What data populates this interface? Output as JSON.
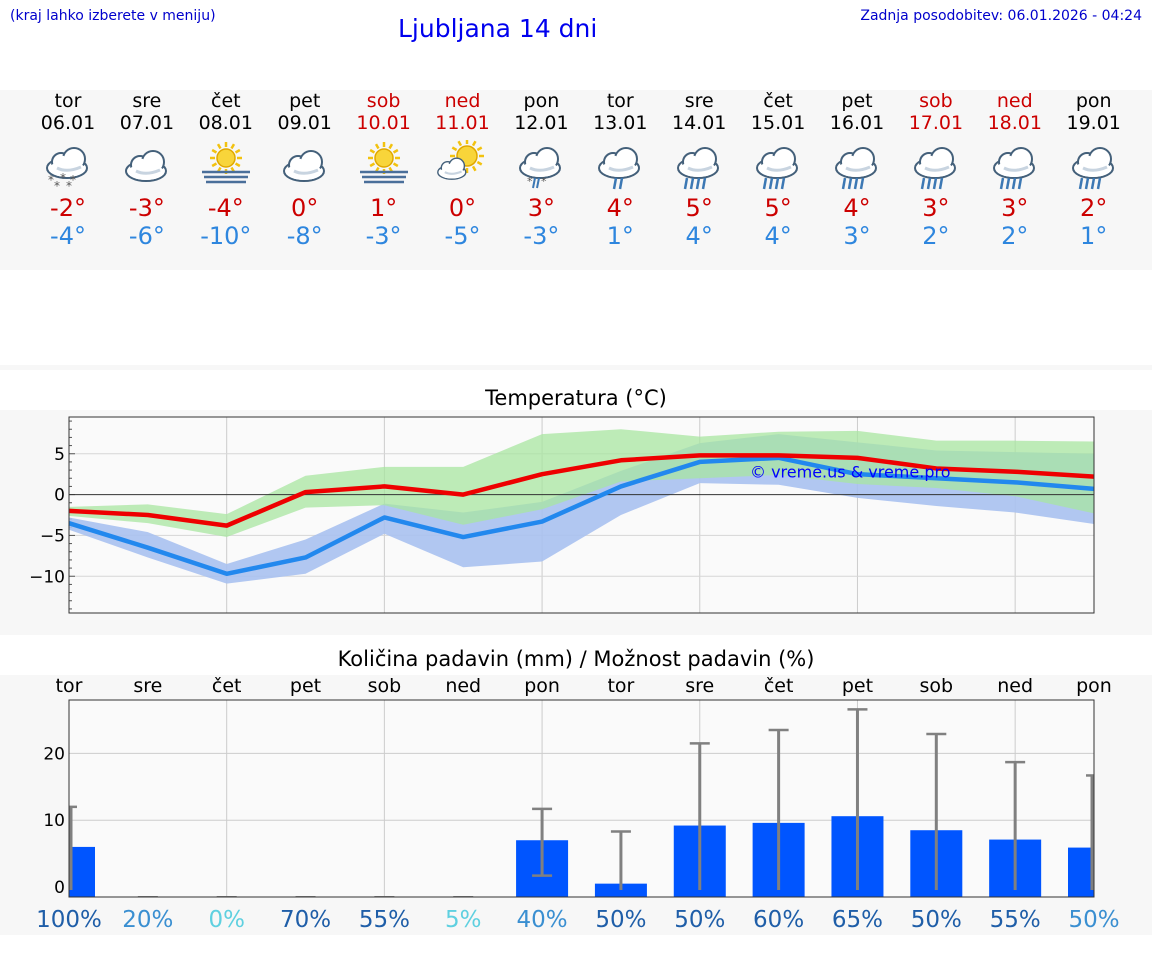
{
  "header": {
    "left_note": "(kraj lahko izberete v meniju)",
    "title": "Ljubljana 14 dni",
    "updated": "Zadnja posodobitev: 06.01.2026 - 04:24"
  },
  "colors": {
    "max": "#ee0000",
    "min": "#2288ee",
    "max_band": "#a8e6a0",
    "min_band": "#a9c1f0",
    "overlap_band": "#6fbfa0",
    "precip_bar": "#0055ff",
    "errbar": "#808080"
  },
  "days": [
    {
      "name": "tor",
      "date": "06.01",
      "weekend": false,
      "icon": "cloud-snow-icon",
      "max": "-2°",
      "min": "-4°"
    },
    {
      "name": "sre",
      "date": "07.01",
      "weekend": false,
      "icon": "cloud-icon",
      "max": "-3°",
      "min": "-6°"
    },
    {
      "name": "čet",
      "date": "08.01",
      "weekend": false,
      "icon": "sun-fog-icon",
      "max": "-4°",
      "min": "-10°"
    },
    {
      "name": "pet",
      "date": "09.01",
      "weekend": false,
      "icon": "cloud-icon",
      "max": "0°",
      "min": "-8°"
    },
    {
      "name": "sob",
      "date": "10.01",
      "weekend": true,
      "icon": "sun-fog-icon",
      "max": "1°",
      "min": "-3°"
    },
    {
      "name": "ned",
      "date": "11.01",
      "weekend": true,
      "icon": "sun-cloud-icon",
      "max": "0°",
      "min": "-5°"
    },
    {
      "name": "pon",
      "date": "12.01",
      "weekend": false,
      "icon": "cloud-sleet-icon",
      "max": "3°",
      "min": "-3°"
    },
    {
      "name": "tor",
      "date": "13.01",
      "weekend": false,
      "icon": "cloud-rain-icon",
      "max": "4°",
      "min": "1°"
    },
    {
      "name": "sre",
      "date": "14.01",
      "weekend": false,
      "icon": "cloud-heavy-rain-icon",
      "max": "5°",
      "min": "4°"
    },
    {
      "name": "čet",
      "date": "15.01",
      "weekend": false,
      "icon": "cloud-heavy-rain-icon",
      "max": "5°",
      "min": "4°"
    },
    {
      "name": "pet",
      "date": "16.01",
      "weekend": false,
      "icon": "cloud-heavy-rain-icon",
      "max": "4°",
      "min": "3°"
    },
    {
      "name": "sob",
      "date": "17.01",
      "weekend": true,
      "icon": "cloud-heavy-rain-icon",
      "max": "3°",
      "min": "2°"
    },
    {
      "name": "ned",
      "date": "18.01",
      "weekend": true,
      "icon": "cloud-heavy-rain-icon",
      "max": "3°",
      "min": "2°"
    },
    {
      "name": "pon",
      "date": "19.01",
      "weekend": false,
      "icon": "cloud-heavy-rain-icon",
      "max": "2°",
      "min": "1°"
    }
  ],
  "chart_data": [
    {
      "type": "line",
      "title": "Temperatura (°C)",
      "watermark": "© vreme.us & vreme.pro",
      "x": [
        0,
        1,
        2,
        3,
        4,
        5,
        6,
        7,
        8,
        9,
        10,
        11,
        12,
        13
      ],
      "ylim": [
        -14.5,
        9.5
      ],
      "yticks": [
        5,
        0,
        -5,
        -10
      ],
      "ytick_labels": [
        "5",
        "0",
        "−5",
        "−10"
      ],
      "series": [
        {
          "name": "max",
          "values": [
            -2,
            -2.5,
            -3.8,
            0.3,
            1,
            0,
            2.5,
            4.2,
            4.8,
            4.8,
            4.5,
            3.2,
            2.8,
            2.2
          ]
        },
        {
          "name": "min",
          "values": [
            -3.5,
            -6.5,
            -9.7,
            -7.7,
            -2.8,
            -5.2,
            -3.3,
            1,
            4,
            4.5,
            2.5,
            2,
            1.5,
            0.7
          ]
        },
        {
          "name": "max_band_upper",
          "values": [
            -1.5,
            -1.2,
            -2.4,
            2.3,
            3.4,
            3.4,
            7.4,
            8,
            7.1,
            7.7,
            7.8,
            6.6,
            6.6,
            6.5
          ]
        },
        {
          "name": "max_band_lower",
          "values": [
            -2.6,
            -3.5,
            -5.2,
            -1.6,
            -1.3,
            -3.7,
            -1.8,
            1.6,
            2,
            2.4,
            1.3,
            0.8,
            -0.2,
            -2.3
          ]
        },
        {
          "name": "min_band_upper",
          "values": [
            -2.8,
            -4.6,
            -8.5,
            -5.5,
            -1.1,
            -2.2,
            -0.9,
            2.9,
            6.3,
            7.4,
            6.4,
            5.4,
            5.2,
            5
          ]
        },
        {
          "name": "min_band_lower",
          "values": [
            -4.3,
            -7.7,
            -10.9,
            -9.7,
            -4.8,
            -8.9,
            -8.2,
            -2.5,
            1.4,
            1.2,
            -0.4,
            -1.4,
            -2.2,
            -3.6
          ]
        }
      ]
    },
    {
      "type": "bar",
      "title": "Količina padavin (mm) / Možnost padavin (%)",
      "categories": [
        "tor",
        "sre",
        "čet",
        "pet",
        "sob",
        "ned",
        "pon",
        "tor",
        "sre",
        "čet",
        "pet",
        "sob",
        "ned",
        "pon"
      ],
      "ylim": [
        -1.5,
        28
      ],
      "yticks": [
        20,
        10,
        0
      ],
      "ytick_labels": [
        "20",
        "10",
        "0"
      ],
      "values": [
        6,
        0,
        0,
        0,
        0,
        0,
        7,
        0.5,
        9.2,
        9.6,
        10.6,
        8.5,
        7.1,
        5.9
      ],
      "error_upper": [
        12,
        0,
        0,
        0,
        0,
        0,
        11.7,
        8.3,
        21.5,
        23.5,
        26.6,
        22.9,
        18.7,
        16.7
      ],
      "error_lower": [
        0,
        0,
        0,
        0,
        0,
        0,
        1.7,
        0,
        0,
        0,
        0,
        0,
        0,
        0
      ],
      "probability_labels": [
        "100%",
        "20%",
        "0%",
        "70%",
        "55%",
        "5%",
        "40%",
        "50%",
        "50%",
        "60%",
        "65%",
        "50%",
        "55%",
        "50%"
      ],
      "probability_colors": [
        "#1f5ea8",
        "#3a8fd1",
        "#5fd0e0",
        "#1f5ea8",
        "#1f5ea8",
        "#5fd0e0",
        "#3a8fd1",
        "#1f5ea8",
        "#1f5ea8",
        "#1f5ea8",
        "#1f5ea8",
        "#1f5ea8",
        "#1f5ea8",
        "#3a8fd1"
      ]
    }
  ]
}
